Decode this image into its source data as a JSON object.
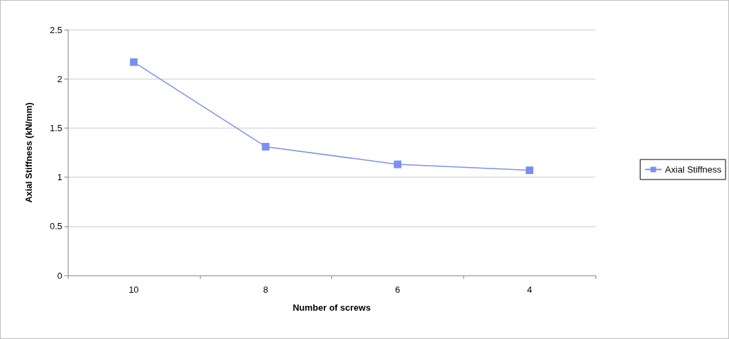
{
  "chart_data": {
    "type": "line",
    "xlabel": "Number of screws",
    "ylabel": "Axial Stiffness (kN/mm)",
    "categories": [
      "10",
      "8",
      "6",
      "4"
    ],
    "series": [
      {
        "name": "Axial Stiffness",
        "color": "#7b8ff0",
        "values": [
          2.17,
          1.31,
          1.13,
          1.07
        ]
      }
    ],
    "ylim": [
      0,
      2.5
    ],
    "yticks": [
      0,
      0.5,
      1,
      1.5,
      2,
      2.5
    ],
    "grid": "y",
    "legend": "right",
    "marker": "square",
    "line_style": "solid"
  }
}
